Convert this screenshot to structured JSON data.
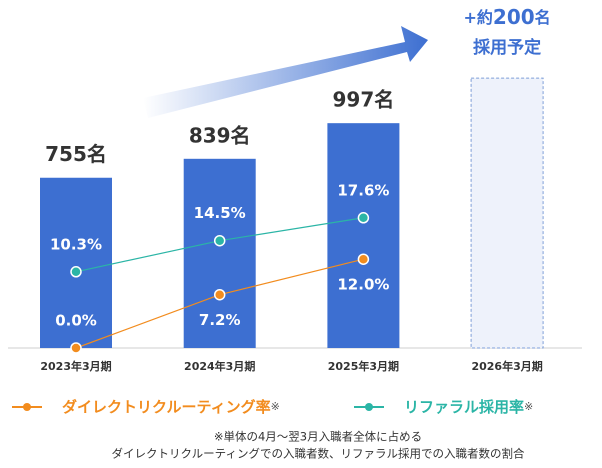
{
  "chart_data": {
    "type": "bar",
    "categories": [
      "2023年3月期",
      "2024年3月期",
      "2025年3月期",
      "2026年3月期"
    ],
    "values": [
      755,
      839,
      997,
      null
    ],
    "value_labels": [
      "755名",
      "839名",
      "997名",
      null
    ],
    "color": "#3d6fd1",
    "plan": {
      "prefix": "+約",
      "value": 200,
      "suffix": "名",
      "note": "採用予定"
    },
    "series": [
      {
        "name": "ダイレクトリクルーティング率",
        "type": "line",
        "color": "#f28c1e",
        "values": [
          0.0,
          7.2,
          12.0,
          null
        ],
        "value_labels": [
          "0.0%",
          "7.2%",
          "12.0%",
          null
        ]
      },
      {
        "name": "リファラル採用率",
        "type": "line",
        "color": "#2bb5a6",
        "values": [
          10.3,
          14.5,
          17.6,
          null
        ],
        "value_labels": [
          "10.3%",
          "14.5%",
          "17.6%",
          null
        ]
      }
    ],
    "note_mark": "※",
    "footnote": [
      "※単体の4月～翌3月入職者全体に占める",
      "ダイレクトリクルーティングでの入職者数、リファラル採用での入職者数の割合"
    ]
  }
}
